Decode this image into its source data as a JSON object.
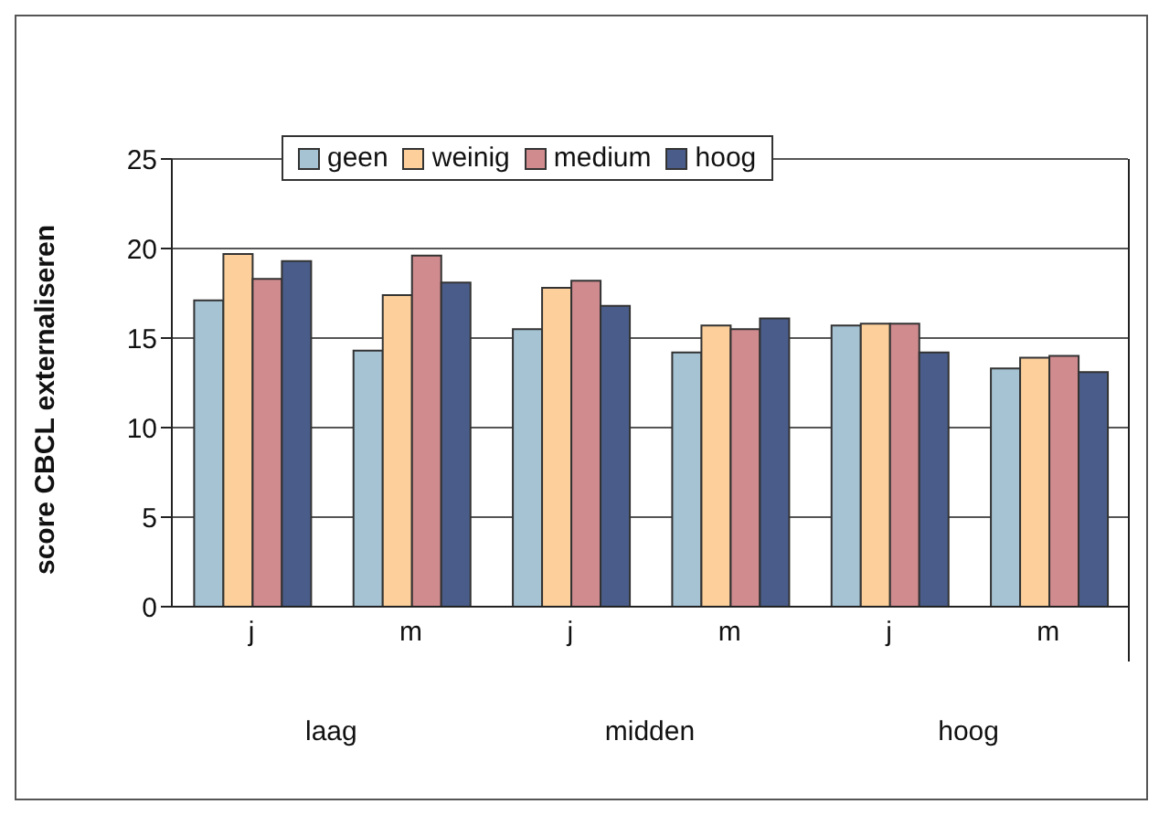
{
  "chart_data": {
    "type": "bar",
    "ylabel": "score CBCL externaliseren",
    "categories": [
      "j",
      "m",
      "j",
      "m",
      "j",
      "m"
    ],
    "series": [
      {
        "name": "geen",
        "color": "#a5c3d3",
        "values": [
          17.1,
          14.3,
          15.5,
          14.2,
          15.7,
          13.3
        ]
      },
      {
        "name": "weinig",
        "color": "#fdd09b",
        "values": [
          19.7,
          17.4,
          17.8,
          15.7,
          15.8,
          13.9
        ]
      },
      {
        "name": "medium",
        "color": "#d08b8f",
        "values": [
          18.3,
          19.6,
          18.2,
          15.5,
          15.8,
          14.0
        ]
      },
      {
        "name": "hoog",
        "color": "#4a5d8a",
        "values": [
          19.3,
          18.1,
          16.8,
          16.1,
          14.2,
          13.1
        ]
      }
    ],
    "ylim": [
      0,
      25
    ],
    "yticks": [
      0,
      5,
      10,
      15,
      20,
      25
    ],
    "grid": "y",
    "legend": "top",
    "annotations": [
      "laag",
      "midden",
      "hoog"
    ]
  }
}
